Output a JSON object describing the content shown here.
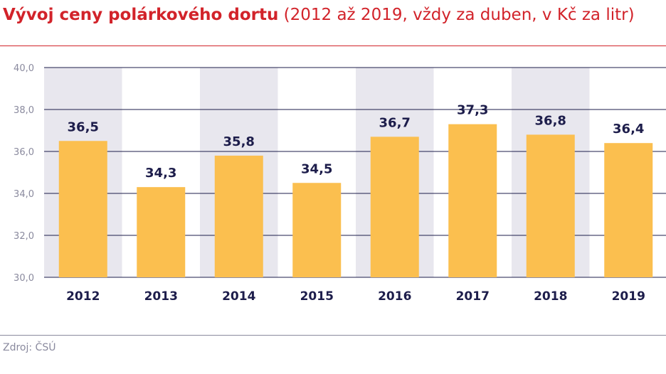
{
  "header": {
    "title": "Vývoj ceny polárkového dortu",
    "subtitle": "(2012 až 2019, vždy za duben, v Kč za litr)"
  },
  "footer": {
    "source": "Zdroj: ČSÚ"
  },
  "colors": {
    "title": "#d2232a",
    "bar": "#fbbf4f",
    "band": "#e8e7ee",
    "axis_text": "#8a8a9e",
    "label_text": "#1d1d4b",
    "grid": "#1d1d4b"
  },
  "chart_data": {
    "type": "bar",
    "categories": [
      "2012",
      "2013",
      "2014",
      "2015",
      "2016",
      "2017",
      "2018",
      "2019"
    ],
    "values": [
      36.5,
      34.3,
      35.8,
      34.5,
      36.7,
      37.3,
      36.8,
      36.4
    ],
    "value_labels": [
      "36,5",
      "34,3",
      "35,8",
      "34,5",
      "36,7",
      "37,3",
      "36,8",
      "36,4"
    ],
    "yticks": [
      30,
      32,
      34,
      36,
      38,
      40
    ],
    "ytick_labels": [
      "30,0",
      "32,0",
      "34,0",
      "36,0",
      "38,0",
      "40,0"
    ],
    "ylim": [
      30,
      40
    ],
    "grid": true,
    "alternating_bands": true,
    "title": "Vývoj ceny polárkového dortu"
  }
}
